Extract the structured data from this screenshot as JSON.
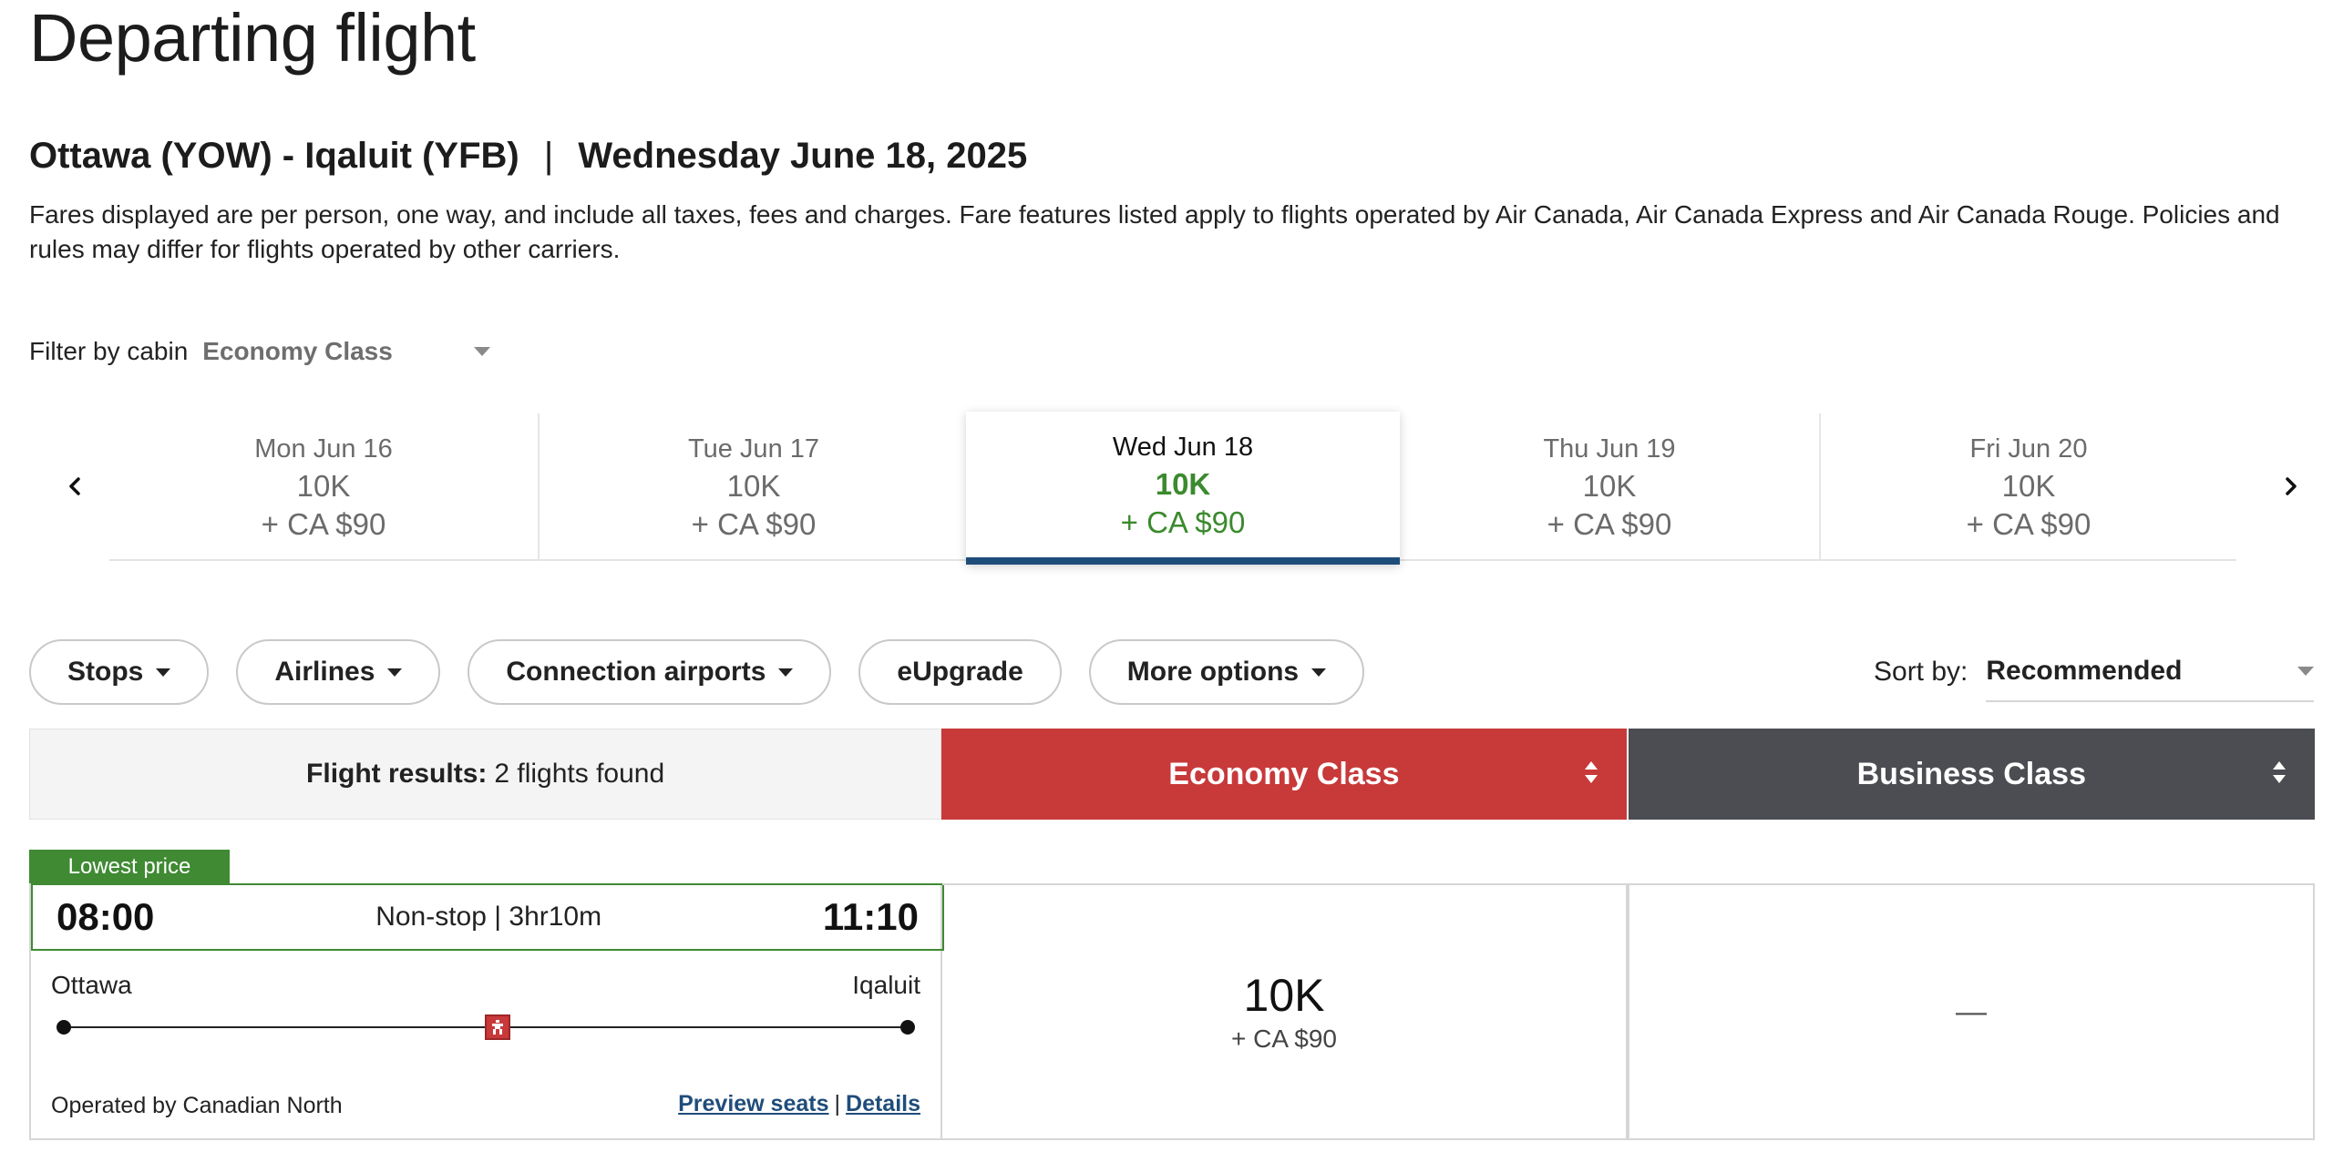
{
  "page": {
    "title": "Departing flight",
    "route": "Ottawa (YOW) - Iqaluit (YFB)",
    "route_separator": "|",
    "date": "Wednesday June 18, 2025",
    "fare_note": "Fares displayed are per person, one way, and include all taxes, fees and charges. Fare features listed apply to flights operated by Air Canada, Air Canada Express and Air Canada Rouge. Policies and rules may differ for flights operated by other carriers."
  },
  "cabin_filter": {
    "label": "Filter by cabin",
    "value": "Economy Class"
  },
  "dates": [
    {
      "label": "Mon Jun 16",
      "points": "10K",
      "cash": "+ CA $90",
      "selected": false
    },
    {
      "label": "Tue Jun 17",
      "points": "10K",
      "cash": "+ CA $90",
      "selected": false
    },
    {
      "label": "Wed Jun 18",
      "points": "10K",
      "cash": "+ CA $90",
      "selected": true
    },
    {
      "label": "Thu Jun 19",
      "points": "10K",
      "cash": "+ CA $90",
      "selected": false
    },
    {
      "label": "Fri Jun 20",
      "points": "10K",
      "cash": "+ CA $90",
      "selected": false
    }
  ],
  "filters": {
    "stops": "Stops",
    "airlines": "Airlines",
    "connection_airports": "Connection airports",
    "eupgrade": "eUpgrade",
    "more_options": "More options"
  },
  "sort": {
    "label": "Sort by:",
    "value": "Recommended"
  },
  "results": {
    "label": "Flight results:",
    "count": "2 flights found",
    "economy_header": "Economy Class",
    "business_header": "Business Class"
  },
  "flight": {
    "badge": "Lowest price",
    "depart_time": "08:00",
    "summary": "Non-stop | 3hr10m",
    "arrive_time": "11:10",
    "origin_city": "Ottawa",
    "destination_city": "Iqaluit",
    "operated_by": "Operated by Canadian North",
    "preview_seats": "Preview seats",
    "link_separator": "|",
    "details": "Details",
    "economy_points": "10K",
    "economy_cash": "+ CA $90",
    "business_value": "—"
  },
  "colors": {
    "economy_red": "#c8393a",
    "business_grey": "#4b4d52",
    "selected_green": "#3b8a2e",
    "selected_underline": "#1f4d7a",
    "badge_green": "#3f8a33"
  }
}
